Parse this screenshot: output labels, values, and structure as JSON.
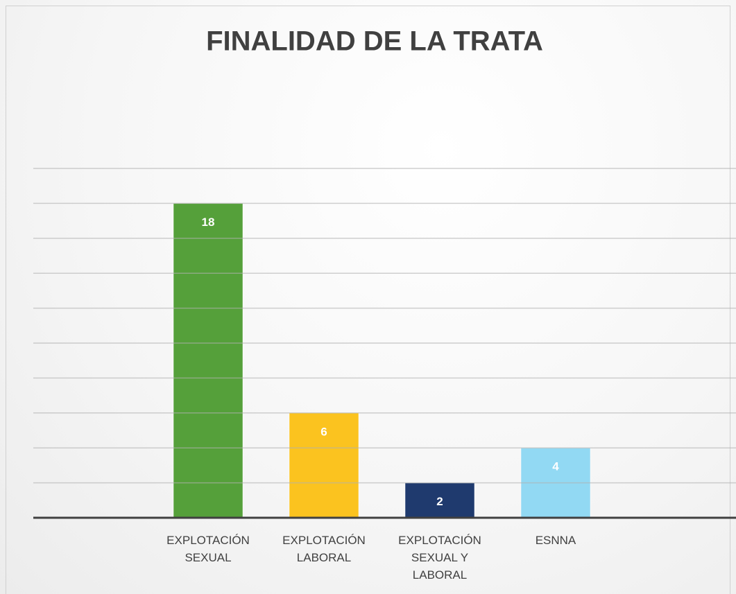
{
  "chart_data": {
    "type": "bar",
    "title": "FINALIDAD DE LA TRATA",
    "categories": [
      "EXPLOTACIÓN SEXUAL",
      "EXPLOTACIÓN LABORAL",
      "EXPLOTACIÓN SEXUAL Y LABORAL",
      "ESNNA"
    ],
    "values": [
      18,
      6,
      2,
      4
    ],
    "colors": [
      "#55a03a",
      "#fbc31f",
      "#1f3a6e",
      "#92d9f3"
    ],
    "ylim": [
      0,
      20
    ],
    "yticks": [
      0,
      2,
      4,
      6,
      8,
      10,
      12,
      14,
      16,
      18,
      20
    ],
    "grid": true
  }
}
